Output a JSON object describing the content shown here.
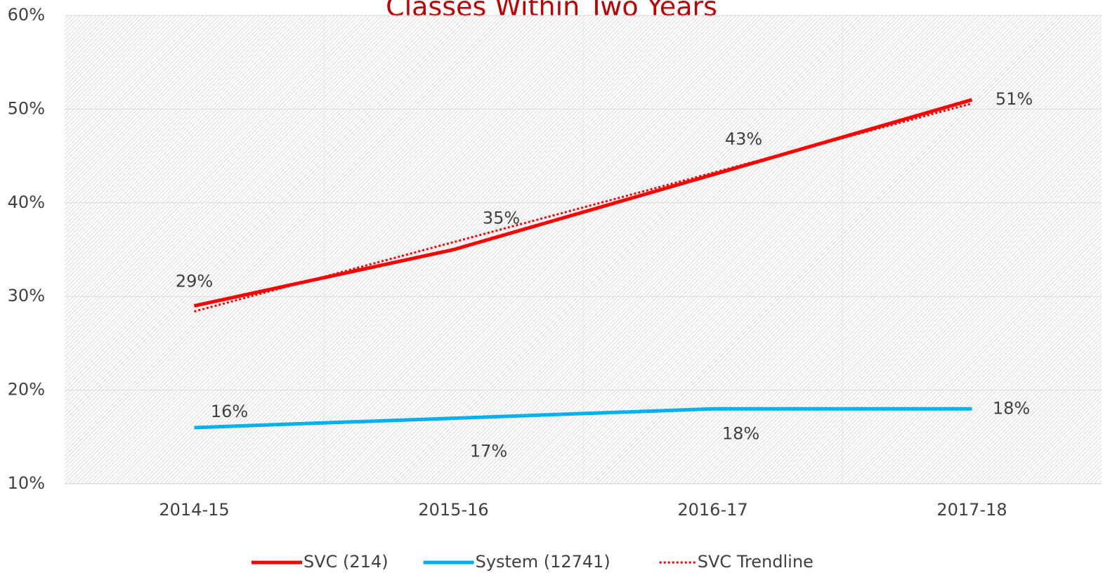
{
  "chart_data": {
    "type": "line",
    "title": "Classes Within Two Years",
    "categories": [
      "2014-15",
      "2015-16",
      "2016-17",
      "2017-18"
    ],
    "series": [
      {
        "name": "SVC (214)",
        "color": "#ff0000",
        "style": "solid",
        "values": [
          29,
          35,
          43,
          51
        ],
        "value_labels": [
          "29%",
          "35%",
          "43%",
          "51%"
        ]
      },
      {
        "name": "System (12741)",
        "color": "#00b0f0",
        "style": "solid",
        "values": [
          16,
          17,
          18,
          18
        ],
        "value_labels": [
          "16%",
          "17%",
          "18%",
          "18%"
        ]
      },
      {
        "name": "SVC Trendline",
        "color": "#ff0000",
        "style": "dotted",
        "values": [
          28.4,
          35.8,
          43.2,
          50.6
        ]
      }
    ],
    "ylim": [
      10,
      60
    ],
    "yticks": [
      {
        "value": 10,
        "label": "10%"
      },
      {
        "value": 20,
        "label": "20%"
      },
      {
        "value": 30,
        "label": "30%"
      },
      {
        "value": 40,
        "label": "40%"
      },
      {
        "value": 50,
        "label": "50%"
      },
      {
        "value": 60,
        "label": "60%"
      }
    ],
    "legend": "bottom"
  }
}
